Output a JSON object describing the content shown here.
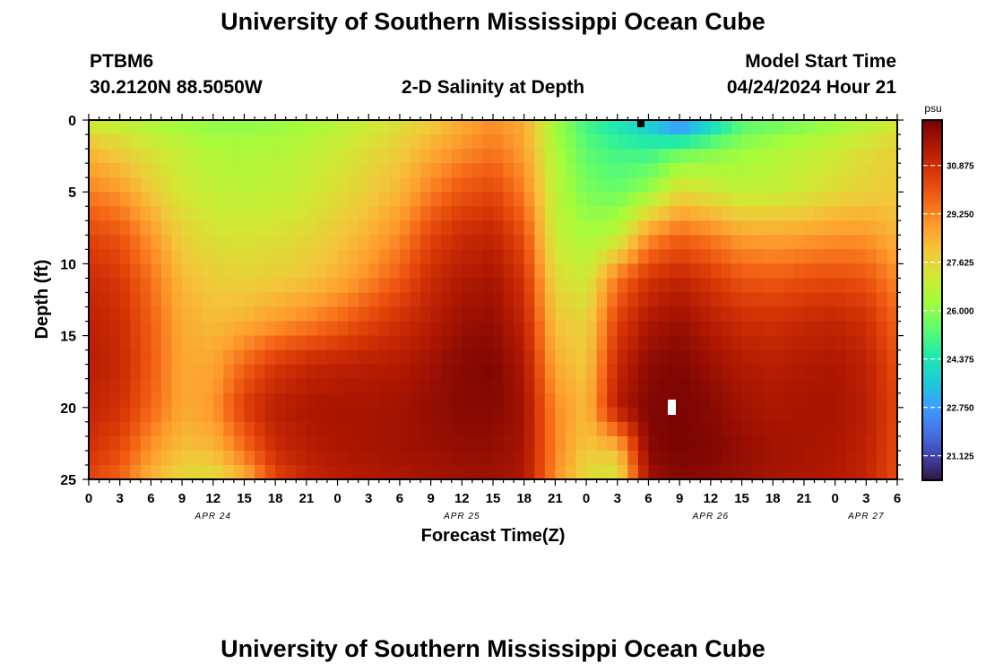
{
  "page": {
    "title": "University of Southern Mississippi Ocean Cube",
    "title_repeat": "University of Southern Mississippi Ocean Cube",
    "station_id": "PTBM6",
    "station_coords": "30.2120N  88.5050W",
    "start_label": "Model Start Time",
    "start_value": "04/24/2024 Hour 21"
  },
  "chart_data": {
    "type": "heatmap",
    "title": "2-D Salinity at Depth",
    "xlabel": "Forecast Time(Z)",
    "ylabel": "Depth (ft)",
    "colorbar_unit": "psu",
    "x_range_hours": [
      0,
      78
    ],
    "ylim": [
      0,
      25
    ],
    "y_inverted": true,
    "x_ticks": [
      "0",
      "3",
      "6",
      "9",
      "12",
      "15",
      "18",
      "21",
      "0",
      "3",
      "6",
      "9",
      "12",
      "15",
      "18",
      "21",
      "0",
      "3",
      "6",
      "9",
      "12",
      "15",
      "18",
      "21",
      "0",
      "3",
      "6"
    ],
    "y_ticks": [
      0,
      5,
      10,
      15,
      20,
      25
    ],
    "date_labels": [
      {
        "hour": 12,
        "label": "APR 24"
      },
      {
        "hour": 36,
        "label": "APR 25"
      },
      {
        "hour": 60,
        "label": "APR 26"
      },
      {
        "hour": 75,
        "label": "APR 27"
      }
    ],
    "colorbar_range": [
      20.3,
      32.4
    ],
    "colorbar_ticks": [
      "30.875",
      "29.250",
      "27.625",
      "26.000",
      "24.375",
      "22.750",
      "21.125"
    ],
    "colormap": [
      "#30123b",
      "#4145ab",
      "#4675ed",
      "#39a2fc",
      "#1bcfd4",
      "#24eca6",
      "#61fc6c",
      "#a4fc3b",
      "#d1e834",
      "#f3c63a",
      "#fe9b2d",
      "#f36315",
      "#d93806",
      "#b11901",
      "#7a0403"
    ],
    "depths": [
      0,
      2,
      5,
      8,
      11,
      14,
      17,
      20,
      23,
      25
    ],
    "hours": [
      0,
      3,
      6,
      9,
      12,
      15,
      18,
      21,
      24,
      27,
      30,
      33,
      36,
      39,
      42,
      45,
      48,
      51,
      54,
      57,
      60,
      63,
      66,
      69,
      72,
      75,
      78
    ],
    "salinity": [
      [
        27.0,
        26.8,
        26.5,
        26.2,
        26.0,
        26.0,
        26.1,
        26.3,
        26.6,
        27.0,
        27.4,
        27.9,
        28.6,
        29.1,
        28.6,
        26.3,
        25.0,
        24.3,
        23.5,
        22.0,
        23.6,
        25.2,
        25.5,
        25.8,
        26.1,
        26.6,
        27.2
      ],
      [
        28.3,
        27.8,
        27.3,
        26.9,
        26.6,
        26.5,
        26.6,
        26.8,
        27.1,
        27.5,
        27.9,
        28.5,
        29.1,
        29.5,
        28.8,
        26.5,
        25.4,
        25.0,
        24.9,
        25.4,
        25.8,
        26.2,
        26.5,
        26.8,
        27.1,
        27.5,
        27.8
      ],
      [
        29.4,
        29.0,
        28.0,
        27.2,
        26.9,
        26.8,
        26.9,
        27.1,
        27.5,
        27.9,
        28.4,
        29.4,
        30.1,
        30.4,
        29.4,
        26.8,
        25.8,
        25.6,
        26.2,
        27.6,
        27.3,
        26.9,
        27.0,
        27.2,
        27.6,
        27.8,
        28.0
      ],
      [
        30.4,
        30.1,
        29.0,
        27.8,
        27.4,
        27.3,
        27.4,
        27.6,
        28.0,
        28.5,
        29.2,
        30.4,
        31.0,
        31.2,
        30.2,
        27.0,
        26.4,
        26.8,
        29.0,
        29.8,
        29.4,
        28.8,
        28.7,
        28.8,
        29.0,
        29.0,
        28.4
      ],
      [
        31.0,
        30.7,
        29.6,
        28.3,
        27.9,
        27.8,
        27.9,
        28.1,
        28.5,
        29.2,
        30.0,
        31.0,
        31.5,
        31.7,
        30.8,
        27.6,
        27.1,
        29.5,
        30.8,
        31.2,
        30.7,
        30.1,
        30.0,
        30.2,
        30.3,
        30.1,
        29.2
      ],
      [
        31.3,
        31.0,
        29.9,
        28.6,
        28.3,
        28.5,
        28.9,
        29.3,
        29.8,
        30.4,
        30.9,
        31.4,
        31.9,
        32.0,
        31.2,
        28.1,
        27.7,
        30.5,
        31.6,
        31.9,
        31.4,
        31.0,
        30.9,
        31.1,
        31.2,
        30.9,
        29.8
      ],
      [
        31.4,
        31.1,
        30.0,
        28.7,
        28.7,
        29.8,
        30.7,
        31.1,
        31.3,
        31.4,
        31.5,
        31.8,
        32.2,
        32.3,
        31.6,
        28.6,
        28.0,
        31.1,
        32.1,
        32.3,
        31.9,
        31.5,
        31.4,
        31.5,
        31.6,
        31.3,
        30.2
      ],
      [
        31.2,
        30.9,
        29.8,
        28.7,
        29.0,
        30.6,
        31.4,
        31.6,
        31.7,
        31.7,
        31.8,
        32.0,
        32.2,
        32.2,
        31.8,
        29.2,
        28.3,
        31.5,
        32.3,
        32.4,
        32.2,
        31.8,
        31.6,
        31.7,
        31.7,
        31.4,
        30.4
      ],
      [
        30.8,
        30.3,
        29.0,
        28.2,
        28.3,
        29.6,
        31.0,
        31.4,
        31.6,
        31.7,
        31.8,
        31.9,
        32.0,
        32.0,
        31.7,
        29.3,
        28.0,
        28.2,
        32.2,
        32.4,
        32.3,
        32.0,
        31.8,
        31.7,
        31.6,
        31.3,
        30.3
      ],
      [
        30.4,
        29.8,
        28.4,
        27.6,
        27.4,
        28.4,
        30.3,
        31.1,
        31.4,
        31.5,
        31.6,
        31.7,
        31.8,
        31.8,
        31.6,
        29.1,
        27.5,
        27.2,
        31.8,
        32.2,
        32.1,
        31.9,
        31.7,
        31.6,
        31.5,
        31.2,
        30.2
      ]
    ]
  }
}
